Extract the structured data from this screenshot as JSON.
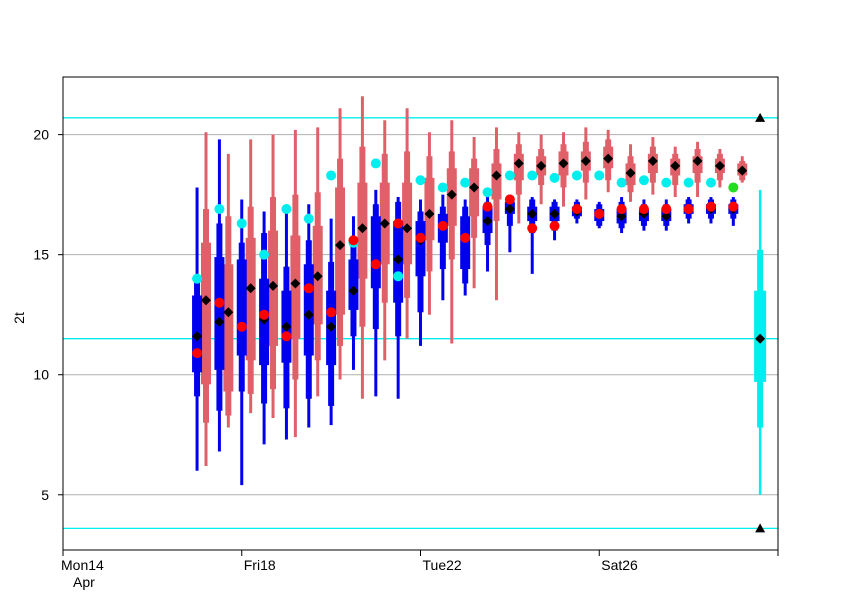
{
  "chart_data": {
    "type": "boxplot",
    "ylabel": "2t",
    "ylim": [
      2.7,
      22.4
    ],
    "yticks": [
      5,
      10,
      15,
      20
    ],
    "grid": true,
    "x_range_days": [
      0,
      16
    ],
    "x_ticks": [
      {
        "day": 0,
        "label": "Mon14",
        "sublabel": "Apr"
      },
      {
        "day": 4,
        "label": "Fri18",
        "sublabel": ""
      },
      {
        "day": 8,
        "label": "Tue22",
        "sublabel": ""
      },
      {
        "day": 12,
        "label": "Sat26",
        "sublabel": ""
      },
      {
        "day": 16,
        "label": "",
        "sublabel": ""
      }
    ],
    "climate_lines": [
      20.7,
      11.5,
      3.6
    ],
    "climate_markers": [
      20.7,
      3.6
    ],
    "colors": {
      "blue_box": "#0000ee",
      "red_box": "#e0606a",
      "cyan": "#00eeee",
      "median": "#000000",
      "point": "#ff0000",
      "green": "#22dd22",
      "grid": "#b0b0b0"
    },
    "blue_series": [
      {
        "x": 3.0,
        "min": 6.0,
        "q1": 10.1,
        "q3": 13.3,
        "max": 17.8,
        "p25": 9.1,
        "p75": 14.0,
        "median": 11.6
      },
      {
        "x": 3.5,
        "min": 6.8,
        "q1": 10.2,
        "q3": 14.9,
        "max": 19.8,
        "p25": 8.5,
        "p75": 16.3,
        "median": 12.2
      },
      {
        "x": 4.0,
        "min": 5.4,
        "q1": 10.8,
        "q3": 14.8,
        "max": 17.3,
        "p25": 9.3,
        "p75": 15.5,
        "median": 12.0
      },
      {
        "x": 4.5,
        "min": 7.1,
        "q1": 10.4,
        "q3": 14.0,
        "max": 16.8,
        "p25": 8.8,
        "p75": 15.9,
        "median": 12.3
      },
      {
        "x": 5.0,
        "min": 7.3,
        "q1": 10.5,
        "q3": 13.5,
        "max": 16.9,
        "p25": 8.6,
        "p75": 14.5,
        "median": 12.0
      },
      {
        "x": 5.5,
        "min": 7.8,
        "q1": 10.8,
        "q3": 14.6,
        "max": 17.1,
        "p25": 9.0,
        "p75": 15.6,
        "median": 12.5
      },
      {
        "x": 6.0,
        "min": 7.9,
        "q1": 10.4,
        "q3": 13.5,
        "max": 16.5,
        "p25": 8.7,
        "p75": 14.7,
        "median": 12.0
      },
      {
        "x": 6.5,
        "min": 10.2,
        "q1": 12.7,
        "q3": 14.8,
        "max": 16.6,
        "p25": 11.6,
        "p75": 15.6,
        "median": 13.5
      },
      {
        "x": 7.0,
        "min": 9.1,
        "q1": 13.6,
        "q3": 16.6,
        "max": 17.7,
        "p25": 11.9,
        "p75": 17.1,
        "median": 14.6
      },
      {
        "x": 7.5,
        "min": 9.0,
        "q1": 13.0,
        "q3": 16.4,
        "max": 17.4,
        "p25": 11.6,
        "p75": 17.2,
        "median": 14.8
      },
      {
        "x": 8.0,
        "min": 11.2,
        "q1": 14.1,
        "q3": 16.4,
        "max": 17.3,
        "p25": 12.6,
        "p75": 16.8,
        "median": 15.6
      },
      {
        "x": 8.5,
        "min": 13.1,
        "q1": 15.5,
        "q3": 16.7,
        "max": 17.5,
        "p25": 14.4,
        "p75": 17.0,
        "median": 16.2
      },
      {
        "x": 9.0,
        "min": 13.3,
        "q1": 14.4,
        "q3": 16.6,
        "max": 17.3,
        "p25": 13.8,
        "p75": 17.0,
        "median": 15.7
      },
      {
        "x": 9.5,
        "min": 14.3,
        "q1": 15.9,
        "q3": 17.0,
        "max": 17.4,
        "p25": 15.4,
        "p75": 17.2,
        "median": 16.4
      },
      {
        "x": 10.0,
        "min": 15.1,
        "q1": 16.7,
        "q3": 17.2,
        "max": 17.5,
        "p25": 16.2,
        "p75": 17.4,
        "median": 16.9
      },
      {
        "x": 10.5,
        "min": 14.2,
        "q1": 16.4,
        "q3": 17.0,
        "max": 17.4,
        "p25": 15.9,
        "p75": 17.3,
        "median": 16.7
      },
      {
        "x": 11.0,
        "min": 15.6,
        "q1": 16.4,
        "q3": 17.0,
        "max": 17.3,
        "p25": 16.0,
        "p75": 17.2,
        "median": 16.7
      },
      {
        "x": 11.5,
        "min": 16.3,
        "q1": 16.6,
        "q3": 17.0,
        "max": 17.3,
        "p25": 16.5,
        "p75": 17.2,
        "median": 16.8
      },
      {
        "x": 12.0,
        "min": 16.1,
        "q1": 16.4,
        "q3": 16.9,
        "max": 17.2,
        "p25": 16.2,
        "p75": 17.1,
        "median": 16.7
      },
      {
        "x": 12.5,
        "min": 15.9,
        "q1": 16.3,
        "q3": 16.9,
        "max": 17.4,
        "p25": 16.1,
        "p75": 17.2,
        "median": 16.6
      },
      {
        "x": 13.0,
        "min": 16.0,
        "q1": 16.4,
        "q3": 16.9,
        "max": 17.3,
        "p25": 16.2,
        "p75": 17.1,
        "median": 16.7
      },
      {
        "x": 13.5,
        "min": 16.0,
        "q1": 16.4,
        "q3": 16.9,
        "max": 17.3,
        "p25": 16.2,
        "p75": 17.1,
        "median": 16.6
      },
      {
        "x": 14.0,
        "min": 16.3,
        "q1": 16.7,
        "q3": 17.1,
        "max": 17.4,
        "p25": 16.5,
        "p75": 17.3,
        "median": 16.9
      },
      {
        "x": 14.5,
        "min": 16.3,
        "q1": 16.7,
        "q3": 17.1,
        "max": 17.4,
        "p25": 16.5,
        "p75": 17.3,
        "median": 16.9
      },
      {
        "x": 15.0,
        "min": 16.2,
        "q1": 16.7,
        "q3": 17.1,
        "max": 17.4,
        "p25": 16.5,
        "p75": 17.3,
        "median": 16.9
      }
    ],
    "red_series": [
      {
        "x": 3.2,
        "min": 6.2,
        "q1": 9.6,
        "q3": 15.5,
        "max": 20.1,
        "p25": 8.0,
        "p75": 16.9,
        "median": 13.1
      },
      {
        "x": 3.7,
        "min": 7.8,
        "q1": 9.3,
        "q3": 14.6,
        "max": 19.2,
        "p25": 8.3,
        "p75": 16.6,
        "median": 12.6
      },
      {
        "x": 4.2,
        "min": 8.4,
        "q1": 10.6,
        "q3": 15.7,
        "max": 19.8,
        "p25": 9.2,
        "p75": 17.0,
        "median": 13.6
      },
      {
        "x": 4.7,
        "min": 8.2,
        "q1": 11.2,
        "q3": 16.0,
        "max": 20.0,
        "p25": 9.4,
        "p75": 17.4,
        "median": 13.7
      },
      {
        "x": 5.2,
        "min": 7.4,
        "q1": 11.5,
        "q3": 15.8,
        "max": 20.2,
        "p25": 9.8,
        "p75": 17.5,
        "median": 13.8
      },
      {
        "x": 5.7,
        "min": 9.1,
        "q1": 12.1,
        "q3": 16.2,
        "max": 20.3,
        "p25": 10.6,
        "p75": 17.6,
        "median": 14.1
      },
      {
        "x": 6.2,
        "min": 9.8,
        "q1": 12.5,
        "q3": 17.8,
        "max": 21.1,
        "p25": 11.2,
        "p75": 19.0,
        "median": 15.4
      },
      {
        "x": 6.7,
        "min": 9.0,
        "q1": 14.0,
        "q3": 18.0,
        "max": 21.6,
        "p25": 12.0,
        "p75": 19.5,
        "median": 16.1
      },
      {
        "x": 7.2,
        "min": 10.6,
        "q1": 14.6,
        "q3": 18.0,
        "max": 20.6,
        "p25": 13.0,
        "p75": 19.2,
        "median": 16.3
      },
      {
        "x": 7.7,
        "min": 11.5,
        "q1": 14.6,
        "q3": 18.0,
        "max": 21.1,
        "p25": 13.2,
        "p75": 19.3,
        "median": 16.1
      },
      {
        "x": 8.2,
        "min": 12.5,
        "q1": 15.6,
        "q3": 18.2,
        "max": 20.1,
        "p25": 14.3,
        "p75": 19.1,
        "median": 16.7
      },
      {
        "x": 8.7,
        "min": 11.3,
        "q1": 16.2,
        "q3": 18.6,
        "max": 20.6,
        "p25": 14.8,
        "p75": 19.3,
        "median": 17.5
      },
      {
        "x": 9.2,
        "min": 13.6,
        "q1": 16.6,
        "q3": 18.6,
        "max": 19.9,
        "p25": 15.7,
        "p75": 19.0,
        "median": 17.8
      },
      {
        "x": 9.7,
        "min": 13.1,
        "q1": 17.3,
        "q3": 18.8,
        "max": 20.3,
        "p25": 16.4,
        "p75": 19.4,
        "median": 18.3
      },
      {
        "x": 10.2,
        "min": 16.3,
        "q1": 18.1,
        "q3": 19.2,
        "max": 20.1,
        "p25": 17.5,
        "p75": 19.6,
        "median": 18.8
      },
      {
        "x": 10.7,
        "min": 17.1,
        "q1": 18.3,
        "q3": 19.1,
        "max": 20.0,
        "p25": 17.9,
        "p75": 19.4,
        "median": 18.7
      },
      {
        "x": 11.2,
        "min": 17.0,
        "q1": 18.3,
        "q3": 19.3,
        "max": 20.1,
        "p25": 17.8,
        "p75": 19.6,
        "median": 18.8
      },
      {
        "x": 11.7,
        "min": 17.3,
        "q1": 18.5,
        "q3": 19.3,
        "max": 20.3,
        "p25": 18.0,
        "p75": 19.7,
        "median": 18.9
      },
      {
        "x": 12.2,
        "min": 17.6,
        "q1": 18.6,
        "q3": 19.5,
        "max": 20.2,
        "p25": 18.1,
        "p75": 19.8,
        "median": 19.0
      },
      {
        "x": 12.7,
        "min": 17.2,
        "q1": 17.9,
        "q3": 18.8,
        "max": 19.6,
        "p25": 17.6,
        "p75": 19.1,
        "median": 18.4
      },
      {
        "x": 13.2,
        "min": 17.5,
        "q1": 18.4,
        "q3": 19.2,
        "max": 19.9,
        "p25": 18.0,
        "p75": 19.5,
        "median": 18.9
      },
      {
        "x": 13.7,
        "min": 17.4,
        "q1": 18.3,
        "q3": 19.0,
        "max": 19.5,
        "p25": 17.9,
        "p75": 19.2,
        "median": 18.7
      },
      {
        "x": 14.2,
        "min": 17.4,
        "q1": 18.4,
        "q3": 19.1,
        "max": 19.7,
        "p25": 18.0,
        "p75": 19.4,
        "median": 18.9
      },
      {
        "x": 14.7,
        "min": 17.8,
        "q1": 18.4,
        "q3": 19.0,
        "max": 19.4,
        "p25": 18.1,
        "p75": 19.2,
        "median": 18.7
      },
      {
        "x": 15.2,
        "min": 18.0,
        "q1": 18.3,
        "q3": 18.8,
        "max": 19.1,
        "p25": 18.1,
        "p75": 18.9,
        "median": 18.5
      }
    ],
    "red_points": [
      {
        "x": 3.0,
        "y": 10.9
      },
      {
        "x": 3.5,
        "y": 13.0
      },
      {
        "x": 4.0,
        "y": 12.0
      },
      {
        "x": 4.5,
        "y": 12.5
      },
      {
        "x": 5.0,
        "y": 11.6
      },
      {
        "x": 5.5,
        "y": 13.6
      },
      {
        "x": 6.0,
        "y": 12.6
      },
      {
        "x": 6.5,
        "y": 15.6
      },
      {
        "x": 7.0,
        "y": 14.6
      },
      {
        "x": 7.5,
        "y": 16.3
      },
      {
        "x": 8.0,
        "y": 15.7
      },
      {
        "x": 8.5,
        "y": 16.2
      },
      {
        "x": 9.0,
        "y": 15.7
      },
      {
        "x": 9.5,
        "y": 17.0
      },
      {
        "x": 10.0,
        "y": 17.3
      },
      {
        "x": 10.5,
        "y": 16.1
      },
      {
        "x": 11.0,
        "y": 16.2
      },
      {
        "x": 11.5,
        "y": 16.9
      },
      {
        "x": 12.0,
        "y": 16.7
      },
      {
        "x": 12.5,
        "y": 16.9
      },
      {
        "x": 13.0,
        "y": 16.9
      },
      {
        "x": 13.5,
        "y": 16.9
      },
      {
        "x": 14.0,
        "y": 16.9
      },
      {
        "x": 14.5,
        "y": 17.0
      },
      {
        "x": 15.0,
        "y": 17.0
      }
    ],
    "cyan_points": [
      {
        "x": 3.0,
        "y": 14.0
      },
      {
        "x": 3.5,
        "y": 16.9
      },
      {
        "x": 4.0,
        "y": 16.3
      },
      {
        "x": 4.5,
        "y": 15.0
      },
      {
        "x": 5.0,
        "y": 16.9
      },
      {
        "x": 5.5,
        "y": 16.5
      },
      {
        "x": 6.0,
        "y": 18.3
      },
      {
        "x": 6.5,
        "y": 15.5
      },
      {
        "x": 7.0,
        "y": 18.8
      },
      {
        "x": 7.5,
        "y": 14.1
      },
      {
        "x": 8.0,
        "y": 18.1
      },
      {
        "x": 8.5,
        "y": 17.8
      },
      {
        "x": 9.0,
        "y": 18.0
      },
      {
        "x": 9.5,
        "y": 17.6
      },
      {
        "x": 10.0,
        "y": 18.3
      },
      {
        "x": 10.5,
        "y": 18.3
      },
      {
        "x": 11.0,
        "y": 18.2
      },
      {
        "x": 11.5,
        "y": 18.3
      },
      {
        "x": 12.0,
        "y": 18.3
      },
      {
        "x": 12.5,
        "y": 18.0
      },
      {
        "x": 13.0,
        "y": 18.1
      },
      {
        "x": 13.5,
        "y": 18.0
      },
      {
        "x": 14.0,
        "y": 18.0
      },
      {
        "x": 14.5,
        "y": 18.0
      }
    ],
    "green_point": {
      "x": 15.0,
      "y": 17.8
    },
    "climate_box": {
      "x": 15.6,
      "min": 5.0,
      "p10": 7.8,
      "q1": 9.7,
      "median": 11.5,
      "q3": 13.5,
      "p90": 15.2,
      "max": 17.7
    }
  }
}
